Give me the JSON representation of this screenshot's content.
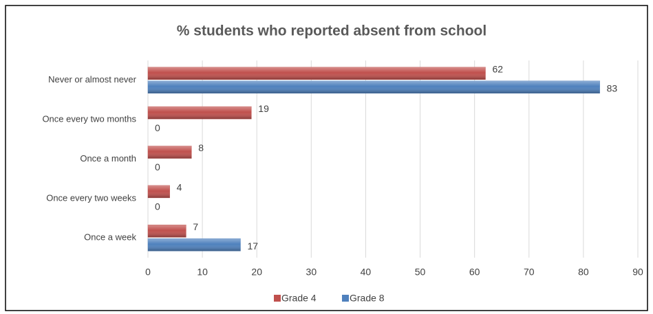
{
  "chart_data": {
    "type": "bar",
    "orientation": "horizontal",
    "title": "% students who reported absent from school",
    "categories": [
      "Never or almost never",
      "Once every two months",
      "Once a month",
      "Once every two weeks",
      "Once a week"
    ],
    "series": [
      {
        "name": "Grade 4",
        "color": "#c0504d",
        "values": [
          62,
          19,
          8,
          4,
          7
        ]
      },
      {
        "name": "Grade 8",
        "color": "#4f81bd",
        "values": [
          83,
          0,
          0,
          0,
          17
        ]
      }
    ],
    "xlim": [
      0,
      90
    ],
    "xticks": [
      0,
      10,
      20,
      30,
      40,
      50,
      60,
      70,
      80,
      90
    ],
    "grid": true,
    "legend": "bottom"
  }
}
